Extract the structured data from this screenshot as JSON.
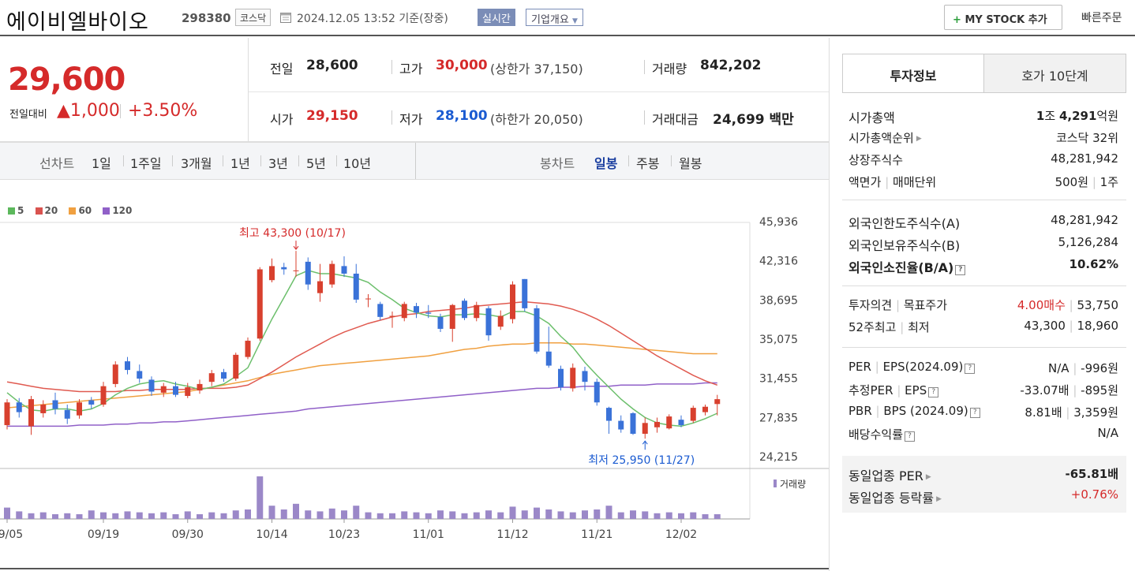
{
  "header": {
    "name": "에이비엘바이오",
    "code": "298380",
    "market": "코스닥",
    "timestamp": "2024.12.05 13:52  기준(장중)",
    "realtime": "실시간",
    "company_overview": "기업개요",
    "my_stock": "MY STOCK 추가",
    "quick_order": "빠른주문"
  },
  "price": {
    "current": "29,600",
    "diff_label": "전일대비",
    "diff_value": "1,000",
    "diff_rate": "+3.50%"
  },
  "stats": {
    "prev_label": "전일",
    "prev_value": "28,600",
    "high_label": "고가",
    "high_value": "30,000",
    "upper_limit": "(상한가 37,150)",
    "volume_label": "거래량",
    "volume_value": "842,202",
    "open_label": "시가",
    "open_value": "29,150",
    "low_label": "저가",
    "low_value": "28,100",
    "lower_limit": "(하한가 20,050)",
    "amount_label": "거래대금",
    "amount_value": "24,699",
    "amount_unit": "백만"
  },
  "period_bar": {
    "line_chart": "선차트",
    "periods": [
      "1일",
      "1주일",
      "3개월",
      "1년",
      "3년",
      "5년",
      "10년"
    ],
    "candle_chart": "봉차트",
    "candles": [
      "일봉",
      "주봉",
      "월봉"
    ]
  },
  "chart_data": {
    "type": "candlestick",
    "legend": [
      {
        "name": "5",
        "color": "#5cb85c"
      },
      {
        "name": "20",
        "color": "#d9534f"
      },
      {
        "name": "60",
        "color": "#f0a040"
      },
      {
        "name": "120",
        "color": "#9060c8"
      }
    ],
    "y_ticks": [
      "45,936",
      "42,316",
      "38,695",
      "35,075",
      "31,455",
      "27,835",
      "24,215"
    ],
    "y_tick_values": [
      45936,
      42316,
      38695,
      35075,
      31455,
      27835,
      24215
    ],
    "x_labels": [
      "09/05",
      "09/19",
      "09/30",
      "10/14",
      "10/23",
      "11/01",
      "11/12",
      "11/21",
      "12/02"
    ],
    "x_label_index": [
      0,
      8,
      15,
      22,
      28,
      35,
      42,
      49,
      56
    ],
    "high_annotation": "최고 43,300 (10/17)",
    "high_index": 24,
    "high_value": 43300,
    "low_annotation": "최저 25,950 (11/27)",
    "low_index": 53,
    "low_value": 25950,
    "volume_label": "거래량",
    "candles": [
      {
        "o": 27200,
        "c": 29300,
        "h": 29600,
        "l": 26800
      },
      {
        "o": 29300,
        "c": 28400,
        "h": 29700,
        "l": 27900
      },
      {
        "o": 27100,
        "c": 29600,
        "h": 29900,
        "l": 26300
      },
      {
        "o": 28300,
        "c": 29100,
        "h": 29500,
        "l": 27900
      },
      {
        "o": 29500,
        "c": 28700,
        "h": 30200,
        "l": 28200
      },
      {
        "o": 28600,
        "c": 27800,
        "h": 29100,
        "l": 27300
      },
      {
        "o": 28100,
        "c": 29300,
        "h": 29600,
        "l": 27800
      },
      {
        "o": 29500,
        "c": 29100,
        "h": 29800,
        "l": 28700
      },
      {
        "o": 29100,
        "c": 30800,
        "h": 31200,
        "l": 28900
      },
      {
        "o": 31000,
        "c": 32800,
        "h": 33100,
        "l": 30700
      },
      {
        "o": 33100,
        "c": 32300,
        "h": 33500,
        "l": 31900
      },
      {
        "o": 32200,
        "c": 31500,
        "h": 32800,
        "l": 31100
      },
      {
        "o": 31400,
        "c": 30300,
        "h": 31700,
        "l": 29900
      },
      {
        "o": 30200,
        "c": 30800,
        "h": 31100,
        "l": 29800
      },
      {
        "o": 30800,
        "c": 30000,
        "h": 31200,
        "l": 29800
      },
      {
        "o": 29900,
        "c": 30700,
        "h": 31100,
        "l": 29700
      },
      {
        "o": 30400,
        "c": 31000,
        "h": 31400,
        "l": 30100
      },
      {
        "o": 31200,
        "c": 32000,
        "h": 32300,
        "l": 30800
      },
      {
        "o": 32100,
        "c": 31500,
        "h": 32400,
        "l": 31200
      },
      {
        "o": 31500,
        "c": 33700,
        "h": 33900,
        "l": 31300
      },
      {
        "o": 33500,
        "c": 35000,
        "h": 35300,
        "l": 33300
      },
      {
        "o": 35200,
        "c": 41600,
        "h": 41800,
        "l": 35000
      },
      {
        "o": 40600,
        "c": 41900,
        "h": 42600,
        "l": 40400
      },
      {
        "o": 41800,
        "c": 41600,
        "h": 42200,
        "l": 41100
      },
      {
        "o": 41500,
        "c": 41500,
        "h": 43300,
        "l": 40900
      },
      {
        "o": 42300,
        "c": 40200,
        "h": 42700,
        "l": 39700
      },
      {
        "o": 39400,
        "c": 40500,
        "h": 42100,
        "l": 38600
      },
      {
        "o": 40200,
        "c": 42100,
        "h": 42400,
        "l": 39900
      },
      {
        "o": 41900,
        "c": 41200,
        "h": 42800,
        "l": 40900
      },
      {
        "o": 41200,
        "c": 38800,
        "h": 42100,
        "l": 38500
      },
      {
        "o": 38900,
        "c": 38900,
        "h": 39300,
        "l": 38100
      },
      {
        "o": 38400,
        "c": 37200,
        "h": 38600,
        "l": 36900
      },
      {
        "o": 37200,
        "c": 37300,
        "h": 37700,
        "l": 36200
      },
      {
        "o": 37100,
        "c": 38400,
        "h": 38600,
        "l": 36800
      },
      {
        "o": 38200,
        "c": 37600,
        "h": 38500,
        "l": 37100
      },
      {
        "o": 37600,
        "c": 37500,
        "h": 38300,
        "l": 37100
      },
      {
        "o": 37200,
        "c": 36100,
        "h": 37500,
        "l": 35800
      },
      {
        "o": 36100,
        "c": 38300,
        "h": 38400,
        "l": 34900
      },
      {
        "o": 38700,
        "c": 37100,
        "h": 38900,
        "l": 36900
      },
      {
        "o": 37100,
        "c": 38300,
        "h": 38600,
        "l": 36800
      },
      {
        "o": 38000,
        "c": 35500,
        "h": 38200,
        "l": 35000
      },
      {
        "o": 36300,
        "c": 37300,
        "h": 37800,
        "l": 36000
      },
      {
        "o": 37000,
        "c": 40200,
        "h": 40500,
        "l": 36600
      },
      {
        "o": 40700,
        "c": 38000,
        "h": 40700,
        "l": 37700
      },
      {
        "o": 38000,
        "c": 34000,
        "h": 38300,
        "l": 33800
      },
      {
        "o": 34000,
        "c": 32700,
        "h": 36300,
        "l": 32500
      },
      {
        "o": 32400,
        "c": 30700,
        "h": 32700,
        "l": 30400
      },
      {
        "o": 30600,
        "c": 32500,
        "h": 32900,
        "l": 30300
      },
      {
        "o": 32200,
        "c": 31200,
        "h": 32600,
        "l": 30400
      },
      {
        "o": 31200,
        "c": 29300,
        "h": 31500,
        "l": 29000
      },
      {
        "o": 28800,
        "c": 27600,
        "h": 28900,
        "l": 26400
      },
      {
        "o": 27600,
        "c": 26800,
        "h": 28100,
        "l": 26500
      },
      {
        "o": 28300,
        "c": 26400,
        "h": 28400,
        "l": 26300
      },
      {
        "o": 26400,
        "c": 27400,
        "h": 27900,
        "l": 25950
      },
      {
        "o": 27000,
        "c": 27500,
        "h": 27900,
        "l": 26500
      },
      {
        "o": 26900,
        "c": 28000,
        "h": 28200,
        "l": 26800
      },
      {
        "o": 27700,
        "c": 27200,
        "h": 28100,
        "l": 27000
      },
      {
        "o": 27600,
        "c": 28800,
        "h": 29000,
        "l": 27400
      },
      {
        "o": 28400,
        "c": 28900,
        "h": 29100,
        "l": 28100
      },
      {
        "o": 29150,
        "c": 29600,
        "h": 30000,
        "l": 28100
      }
    ],
    "volumes": [
      12,
      8,
      6,
      7,
      5,
      6,
      5,
      9,
      7,
      6,
      8,
      7,
      6,
      7,
      5,
      8,
      5,
      7,
      6,
      9,
      10,
      45,
      14,
      10,
      16,
      9,
      8,
      11,
      9,
      14,
      7,
      6,
      6,
      8,
      7,
      6,
      9,
      8,
      6,
      7,
      9,
      7,
      13,
      9,
      12,
      10,
      8,
      7,
      9,
      10,
      14,
      7,
      9,
      8,
      6,
      7,
      6,
      7,
      5,
      5
    ],
    "ma": {
      "ma5": [
        30200,
        29300,
        28600,
        28500,
        28700,
        28700,
        28500,
        28700,
        29200,
        30000,
        30600,
        31000,
        31200,
        31300,
        31000,
        30800,
        30500,
        30700,
        31000,
        31700,
        32500,
        34800,
        37000,
        39000,
        41000,
        41500,
        41200,
        41200,
        41000,
        40800,
        40400,
        39500,
        38800,
        38000,
        37600,
        37300,
        37200,
        37400,
        37400,
        37500,
        37400,
        37200,
        37700,
        37700,
        37300,
        36600,
        35400,
        34400,
        33000,
        31800,
        30700,
        29600,
        28700,
        27900,
        27400,
        27200,
        27100,
        27400,
        27800,
        28300
      ],
      "ma20": [
        31200,
        31000,
        30800,
        30600,
        30500,
        30400,
        30300,
        30300,
        30300,
        30300,
        30400,
        30400,
        30500,
        30500,
        30500,
        30500,
        30600,
        30600,
        30600,
        30700,
        30900,
        31500,
        32100,
        32800,
        33500,
        34100,
        34700,
        35300,
        35800,
        36200,
        36600,
        36900,
        37200,
        37400,
        37500,
        37700,
        37800,
        37900,
        38000,
        38200,
        38300,
        38400,
        38500,
        38600,
        38500,
        38400,
        38200,
        37900,
        37500,
        37000,
        36400,
        35700,
        35000,
        34300,
        33600,
        33000,
        32400,
        31800,
        31300,
        30900
      ],
      "ma60": [
        28800,
        28900,
        29000,
        29100,
        29200,
        29300,
        29400,
        29500,
        29600,
        29700,
        29800,
        29900,
        30000,
        30100,
        30200,
        30300,
        30500,
        30700,
        30900,
        31100,
        31300,
        31600,
        31900,
        32100,
        32300,
        32500,
        32700,
        32800,
        32900,
        33000,
        33100,
        33200,
        33300,
        33400,
        33500,
        33600,
        33800,
        34000,
        34200,
        34300,
        34500,
        34600,
        34700,
        34700,
        34800,
        34800,
        34800,
        34700,
        34700,
        34600,
        34500,
        34400,
        34300,
        34200,
        34100,
        34000,
        33900,
        33800,
        33800,
        33800
      ],
      "ma120": [
        27100,
        27100,
        27100,
        27100,
        27100,
        27100,
        27200,
        27200,
        27200,
        27300,
        27300,
        27400,
        27400,
        27500,
        27500,
        27600,
        27700,
        27800,
        27900,
        28000,
        28100,
        28200,
        28300,
        28400,
        28500,
        28700,
        28800,
        28900,
        29000,
        29100,
        29200,
        29300,
        29400,
        29500,
        29600,
        29700,
        29800,
        29900,
        30000,
        30100,
        30200,
        30300,
        30400,
        30500,
        30600,
        30600,
        30700,
        30700,
        30800,
        30800,
        30800,
        30900,
        30900,
        30900,
        31000,
        31000,
        31000,
        31000,
        31100,
        31100
      ]
    }
  },
  "invest": {
    "tab_info": "투자정보",
    "tab_order": "호가 10단계",
    "market_cap_label": "시가총액",
    "market_cap_value_1": "1",
    "market_cap_unit_1": "조 ",
    "market_cap_value_2": "4,291",
    "market_cap_unit_2": "억원",
    "market_cap_rank_label": "시가총액순위",
    "market_cap_rank_value": "코스닥 32위",
    "listed_shares_label": "상장주식수",
    "listed_shares_value": "48,281,942",
    "par_label": "액면가",
    "trade_unit_label": "매매단위",
    "par_value": "500원",
    "trade_unit_value": "1주",
    "foreign_limit_label": "외국인한도주식수(A)",
    "foreign_limit_value": "48,281,942",
    "foreign_hold_label": "외국인보유주식수(B)",
    "foreign_hold_value": "5,126,284",
    "foreign_ratio_label": "외국인소진율(B/A)",
    "foreign_ratio_value": "10.62%",
    "opinion_label": "투자의견",
    "target_label": "목표주가",
    "opinion_value": "4.00매수",
    "target_value": "53,750",
    "week52_label": "52주최고",
    "week52_low_label": "최저",
    "week52_high": "43,300",
    "week52_low": "18,960",
    "per_label": "PER",
    "eps_label": "EPS(2024.09)",
    "per_value": "N/A",
    "eps_value": "-996원",
    "est_per_label": "추정PER",
    "est_eps_label": "EPS",
    "est_per_value": "-33.07배",
    "est_eps_value": "-895원",
    "pbr_label": "PBR",
    "bps_label": "BPS (2024.09)",
    "pbr_value": "8.81배",
    "bps_value": "3,359원",
    "dividend_label": "배당수익률",
    "dividend_value": "N/A",
    "sector_per_label": "동일업종 PER",
    "sector_per_value": "-65.81배",
    "sector_rate_label": "동일업종 등락률",
    "sector_rate_value": "+0.76%"
  }
}
